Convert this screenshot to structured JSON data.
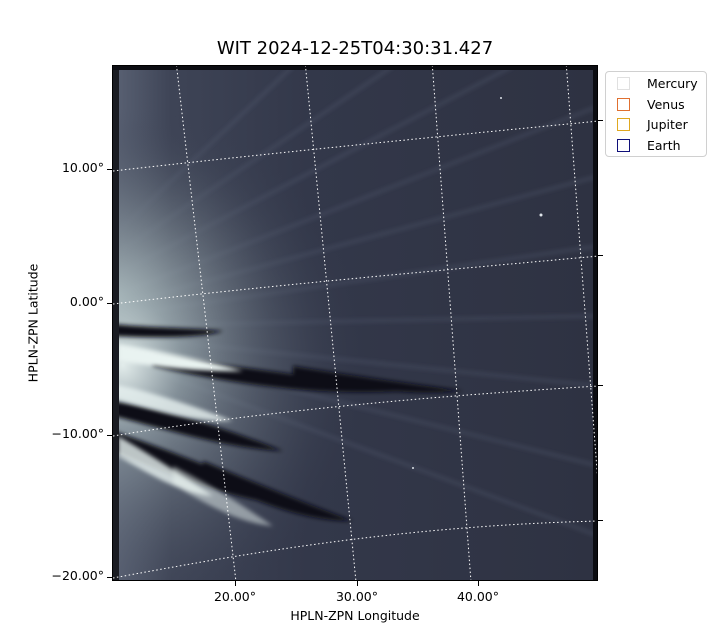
{
  "title": "WIT 2024-12-25T04:30:31.427",
  "axes": {
    "xlabel": "HPLN-ZPN Longitude",
    "ylabel": "HPLN-ZPN Latitude",
    "xticks": [
      "20.00°",
      "30.00°",
      "40.00°"
    ],
    "yticks": [
      "10.00°",
      "0.00°",
      "−10.00°",
      "−20.00°"
    ]
  },
  "legend": {
    "items": [
      {
        "label": "Mercury",
        "color": "#e0e0e0"
      },
      {
        "label": "Venus",
        "color": "#e07030"
      },
      {
        "label": "Jupiter",
        "color": "#e0a820"
      },
      {
        "label": "Earth",
        "color": "#10107a"
      }
    ]
  },
  "image": {
    "description_colormap": "bone",
    "grid": true
  }
}
